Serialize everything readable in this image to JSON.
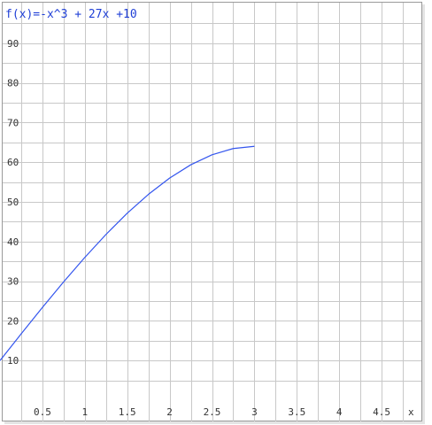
{
  "chart_data": {
    "type": "line",
    "title": "f(x)=-x^3 + 27x +10",
    "xlabel": "x",
    "ylabel": "",
    "xlim": [
      0,
      5
    ],
    "ylim": [
      0,
      100
    ],
    "grid": true,
    "x_ticks": [
      "0.5",
      "1",
      "1.5",
      "2",
      "2.5",
      "3",
      "3.5",
      "4",
      "4.5"
    ],
    "y_ticks": [
      "10",
      "20",
      "30",
      "40",
      "50",
      "60",
      "70",
      "80",
      "90"
    ],
    "series": [
      {
        "color": "#3355ee",
        "x": [
          0,
          0.25,
          0.5,
          0.75,
          1,
          1.25,
          1.5,
          1.75,
          2,
          2.25,
          2.5,
          2.75,
          3
        ],
        "y": [
          10,
          16.73,
          23.38,
          29.83,
          36,
          41.8,
          47.13,
          51.89,
          56,
          59.36,
          61.88,
          63.45,
          64
        ]
      }
    ]
  }
}
